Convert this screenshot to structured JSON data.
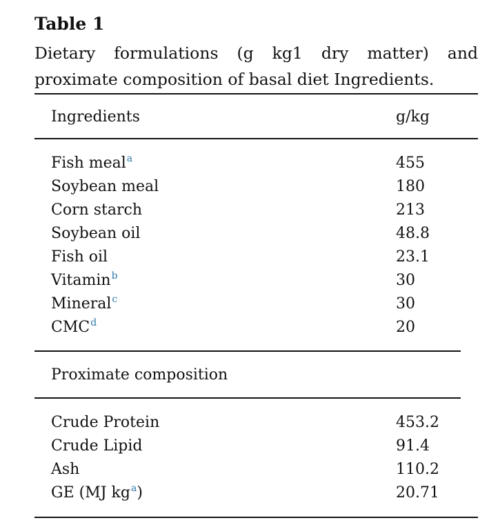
{
  "table_label": "Table 1",
  "caption": "Dietary formulations (g kg1 dry matter) and proximate composition of basal diet Ingredients.",
  "header": {
    "col1": "Ingredients",
    "col2": "g/kg"
  },
  "ingredients": [
    {
      "name": "Fish meal",
      "footnote": "a",
      "value": "455"
    },
    {
      "name": "Soybean meal",
      "footnote": "",
      "value": "180"
    },
    {
      "name": "Corn starch",
      "footnote": "",
      "value": "213"
    },
    {
      "name": "Soybean oil",
      "footnote": "",
      "value": "48.8"
    },
    {
      "name": "Fish oil",
      "footnote": "",
      "value": "23.1"
    },
    {
      "name": "Vitamin",
      "footnote": "b",
      "value": "30"
    },
    {
      "name": "Mineral",
      "footnote": "c",
      "value": "30"
    },
    {
      "name": "CMC",
      "footnote": "d",
      "value": "20"
    }
  ],
  "proximate_heading": "Proximate composition",
  "proximate": [
    {
      "name": "Crude Protein",
      "value": "453.2"
    },
    {
      "name": "Crude Lipid",
      "value": "91.4"
    },
    {
      "name": "Ash",
      "value": "110.2"
    },
    {
      "name": "GE (MJ kg",
      "sup": "a",
      "suffix": ")",
      "value": "20.71"
    }
  ]
}
